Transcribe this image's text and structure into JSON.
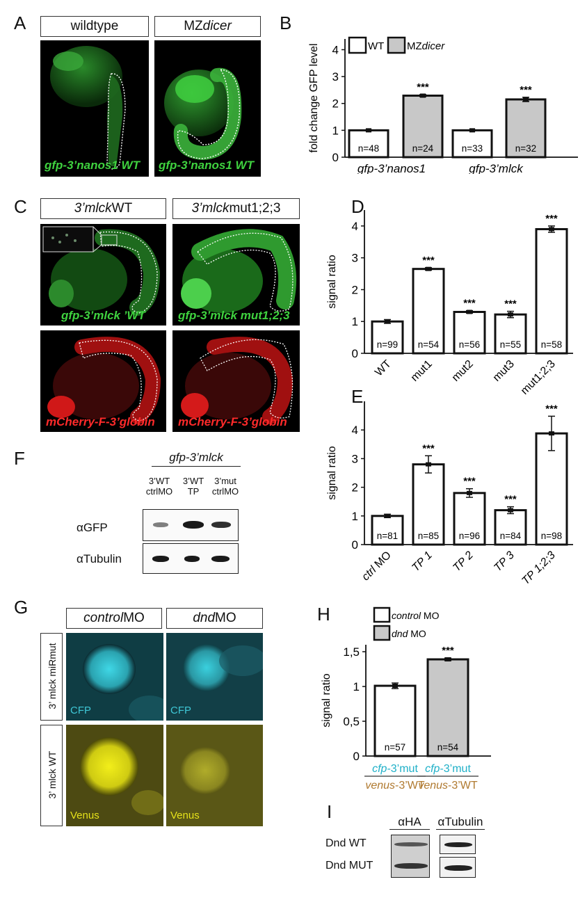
{
  "panels": {
    "A": {
      "letter": "A",
      "headers": [
        "wildtype",
        "MZdicer"
      ],
      "header_plain": [
        "wildtype",
        "MZ"
      ],
      "header_italic": [
        "",
        "dicer"
      ],
      "captions": [
        "gfp-3’nanos1 WT",
        "gfp-3’nanos1 WT"
      ],
      "caption_italic": "gfp-3’nanos1",
      "caption_plain": " WT"
    },
    "C": {
      "letter": "C",
      "headers": [
        "3’mlck WT",
        "3’mlck mut1;2;3"
      ],
      "header_italic": "3’mlck",
      "header_plain": [
        " WT",
        " mut1;2;3"
      ],
      "captions_top": [
        "gfp-3’mlck ’WT",
        "gfp-3’mlck mut1;2;3"
      ],
      "captions_top_italic": "gfp-3’mlck",
      "captions_top_plain": [
        " ’WT",
        " mut1;2;3"
      ],
      "captions_bottom": [
        "mCherry-F-3’globin",
        "mCherry-F-3’globin"
      ]
    },
    "F": {
      "letter": "F",
      "title": "gfp-3’mlck",
      "lanes": [
        {
          "line1": "3’WT",
          "line2": "ctrlMO"
        },
        {
          "line1": "3’WT",
          "line2": "TP"
        },
        {
          "line1": "3’mut",
          "line2": "ctrlMO"
        }
      ],
      "rows": [
        "αGFP",
        "αTubulin"
      ],
      "gfp_band_intensity": [
        0.4,
        1.0,
        0.85
      ]
    },
    "G": {
      "letter": "G",
      "headers": [
        "control MO",
        "dnd MO"
      ],
      "header_italic": [
        "control",
        "dnd"
      ],
      "header_plain": [
        " MO",
        " MO"
      ],
      "row_labels": [
        "3’ mlck miRmut",
        "3’ mlck WT"
      ],
      "row_italic": "mlck",
      "captions": [
        "CFP",
        "CFP",
        "Venus",
        "Venus"
      ],
      "colors": {
        "cfp": "#3fc7d6",
        "venus": "#e6e21a"
      }
    },
    "I": {
      "letter": "I",
      "columns": [
        "αHA",
        "αTubulin"
      ],
      "rows": [
        "Dnd WT",
        "Dnd MUT"
      ]
    },
    "B": {
      "letter": "B"
    },
    "D": {
      "letter": "D"
    },
    "E": {
      "letter": "E"
    },
    "H": {
      "letter": "H"
    }
  },
  "chart_data": [
    {
      "id": "B",
      "type": "bar",
      "ylabel": "fold change GFP level",
      "ylim": [
        0,
        4.4
      ],
      "yticks": [
        0,
        1,
        2,
        3,
        4
      ],
      "legend": [
        {
          "name": "WT",
          "color": "#ffffff"
        },
        {
          "name": "MZdicer",
          "name_plain": "MZ",
          "name_italic": "dicer",
          "color": "#c8c8c8"
        }
      ],
      "groups": [
        "gfp-3’nanos1",
        "gfp-3’mlck"
      ],
      "bars": [
        {
          "group": 0,
          "series": "WT",
          "value": 1.0,
          "err": 0.02,
          "n": "n=48",
          "sig": ""
        },
        {
          "group": 0,
          "series": "MZdicer",
          "value": 2.29,
          "err": 0.04,
          "n": "n=24",
          "sig": "***"
        },
        {
          "group": 1,
          "series": "WT",
          "value": 1.0,
          "err": 0.02,
          "n": "n=33",
          "sig": ""
        },
        {
          "group": 1,
          "series": "MZdicer",
          "value": 2.15,
          "err": 0.08,
          "n": "n=32",
          "sig": "***"
        }
      ]
    },
    {
      "id": "D",
      "type": "bar",
      "ylabel": "signal ratio",
      "ylim": [
        0,
        4.5
      ],
      "yticks": [
        0,
        1,
        2,
        3,
        4
      ],
      "categories": [
        "WT",
        "mut1",
        "mut2",
        "mut3",
        "mut1;2;3"
      ],
      "values": [
        1.0,
        2.65,
        1.3,
        1.22,
        3.9
      ],
      "errors": [
        0.06,
        0.04,
        0.04,
        0.1,
        0.1
      ],
      "n": [
        "n=99",
        "n=54",
        "n=56",
        "n=55",
        "n=58"
      ],
      "sig": [
        "",
        "***",
        "***",
        "***",
        "***"
      ]
    },
    {
      "id": "E",
      "type": "bar",
      "ylabel": "signal ratio",
      "ylim": [
        0,
        5.0
      ],
      "yticks": [
        0,
        1,
        2,
        3,
        4
      ],
      "categories": [
        "ctrl MO",
        "TP 1",
        "TP 2",
        "TP 3",
        "TP 1;2;3"
      ],
      "categories_italic": [
        "ctrl",
        "TP 1",
        "TP 2",
        "TP 3",
        "TP 1;2;3"
      ],
      "categories_plain": [
        " MO",
        "",
        "",
        "",
        ""
      ],
      "values": [
        1.0,
        2.8,
        1.8,
        1.2,
        3.88
      ],
      "errors": [
        0.06,
        0.3,
        0.15,
        0.12,
        0.6
      ],
      "n": [
        "n=81",
        "n=85",
        "n=96",
        "n=84",
        "n=98"
      ],
      "sig": [
        "",
        "***",
        "***",
        "***",
        "***"
      ]
    },
    {
      "id": "H",
      "type": "bar",
      "ylabel": "signal ratio",
      "ylim": [
        0,
        1.6
      ],
      "yticks": [
        0,
        0.5,
        1,
        1.5
      ],
      "yticklabels": [
        "0",
        "0,5",
        "1",
        "1,5"
      ],
      "legend": [
        {
          "name": "control MO",
          "name_italic": "control",
          "name_plain": " MO",
          "color": "#ffffff"
        },
        {
          "name": "dnd MO",
          "name_italic": "dnd",
          "name_plain": " MO",
          "color": "#c8c8c8"
        }
      ],
      "categories": [
        "cfp-3’mut venus-3’WT",
        "cfp-3’mut venus-3’WT"
      ],
      "cat_line1_italic": "cfp",
      "cat_line1_plain": "-3’mut",
      "cat_line2_italic": "venus",
      "cat_line2_plain": "-3’WT",
      "values": [
        1.01,
        1.39
      ],
      "errors": [
        0.04,
        0.02
      ],
      "colors": [
        "#ffffff",
        "#c8c8c8"
      ],
      "n": [
        "n=57",
        "n=54"
      ],
      "sig": [
        "",
        "***"
      ]
    }
  ]
}
